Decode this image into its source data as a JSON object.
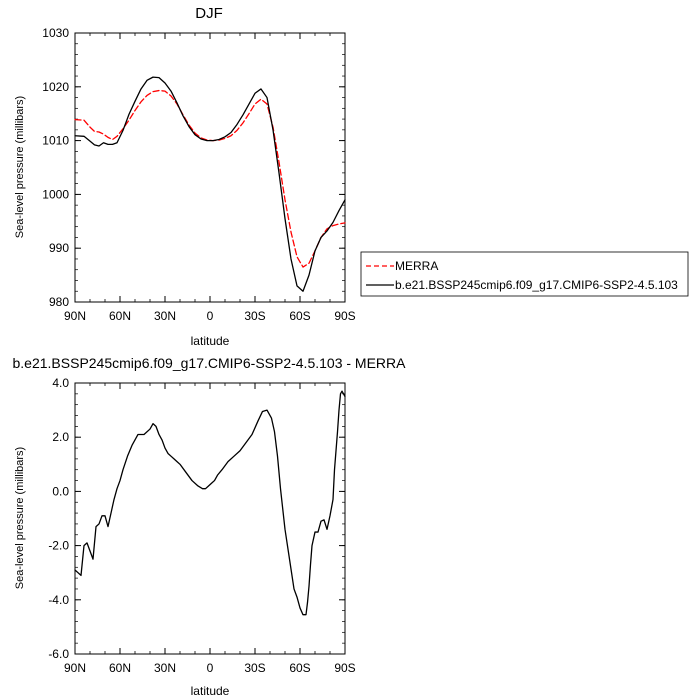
{
  "chart_data": [
    {
      "type": "line",
      "title": "DJF",
      "xlabel": "latitude",
      "ylabel": "Sea-level pressure (millibars)",
      "xlim": [
        90,
        -90
      ],
      "ylim": [
        980,
        1030
      ],
      "xticks": [
        90,
        60,
        30,
        0,
        -30,
        -60,
        -90
      ],
      "xticklabels": [
        "90N",
        "60N",
        "30N",
        "0",
        "30S",
        "60S",
        "90S"
      ],
      "yticks": [
        980,
        990,
        1000,
        1010,
        1020,
        1030
      ],
      "yticklabels": [
        "980",
        "990",
        "1000",
        "1010",
        "1020",
        "1030"
      ],
      "legend_position": "right",
      "series": [
        {
          "name": "MERRA",
          "color": "#ff0000",
          "dash": "dashed",
          "x": [
            90,
            84,
            80,
            77,
            74,
            71,
            68,
            65,
            62,
            58,
            54,
            50,
            46,
            42,
            38,
            34,
            30,
            26,
            22,
            18,
            14,
            10,
            6,
            2,
            -2,
            -6,
            -10,
            -14,
            -18,
            -22,
            -26,
            -30,
            -34,
            -38,
            -42,
            -46,
            -50,
            -54,
            -58,
            -62,
            -66,
            -70,
            -74,
            -78,
            -82,
            -86,
            -90
          ],
          "values": [
            1013.9,
            1013.8,
            1012.5,
            1011.7,
            1011.6,
            1011.2,
            1010.6,
            1010.2,
            1010.8,
            1012.2,
            1013.8,
            1015.6,
            1017.2,
            1018.4,
            1019.1,
            1019.3,
            1019.2,
            1018.3,
            1016.8,
            1014.8,
            1012.9,
            1011.4,
            1010.5,
            1010.1,
            1010.0,
            1010.1,
            1010.4,
            1010.9,
            1011.9,
            1013.3,
            1015.0,
            1016.8,
            1017.7,
            1016.8,
            1012.5,
            1006.0,
            999.0,
            993.0,
            988.4,
            986.5,
            987.2,
            989.5,
            992.0,
            993.6,
            994.2,
            994.5,
            994.7
          ]
        },
        {
          "name": "b.e21.BSSP245cmip6.f09_g17.CMIP6-SSP2-4.5.103",
          "color": "#000000",
          "dash": "solid",
          "x": [
            90,
            84,
            80,
            77,
            74,
            71,
            68,
            65,
            62,
            58,
            54,
            50,
            46,
            42,
            38,
            34,
            30,
            26,
            22,
            18,
            14,
            10,
            6,
            2,
            -2,
            -6,
            -10,
            -14,
            -18,
            -22,
            -26,
            -30,
            -34,
            -38,
            -42,
            -46,
            -50,
            -54,
            -58,
            -62,
            -66,
            -70,
            -74,
            -78,
            -82,
            -86,
            -90
          ],
          "values": [
            1010.9,
            1010.8,
            1009.9,
            1009.2,
            1009.0,
            1009.6,
            1009.3,
            1009.3,
            1009.6,
            1011.9,
            1014.9,
            1017.3,
            1019.6,
            1021.2,
            1021.8,
            1021.7,
            1020.7,
            1019.2,
            1017.0,
            1014.6,
            1012.6,
            1011.1,
            1010.3,
            1010.0,
            1010.0,
            1010.2,
            1010.7,
            1011.5,
            1013.0,
            1014.8,
            1016.8,
            1018.8,
            1019.6,
            1018.0,
            1012.0,
            1004.0,
            995.5,
            988.0,
            983.0,
            982.0,
            985.0,
            989.5,
            992.0,
            993.2,
            994.8,
            997.0,
            999.0
          ]
        }
      ]
    },
    {
      "type": "line",
      "title": "b.e21.BSSP245cmip6.f09_g17.CMIP6-SSP2-4.5.103 - MERRA",
      "xlabel": "latitude",
      "ylabel": "Sea-level pressure (millibars)",
      "xlim": [
        90,
        -90
      ],
      "ylim": [
        -6.0,
        4.0
      ],
      "xticks": [
        90,
        60,
        30,
        0,
        -30,
        -60,
        -90
      ],
      "xticklabels": [
        "90N",
        "60N",
        "30N",
        "0",
        "30S",
        "60S",
        "90S"
      ],
      "yticks": [
        -6,
        -4,
        -2,
        0,
        2,
        4
      ],
      "yticklabels": [
        "-6.0",
        "-4.0",
        "-2.0",
        "0.0",
        "2.0",
        "4.0"
      ],
      "series": [
        {
          "color": "#000000",
          "dash": "solid",
          "x": [
            90,
            88,
            86,
            84,
            82,
            80,
            78,
            76,
            74,
            72,
            70,
            68,
            66,
            64,
            62,
            60,
            58,
            55,
            52,
            48,
            44,
            40,
            38,
            36,
            34,
            32,
            30,
            28,
            26,
            24,
            22,
            20,
            16,
            12,
            8,
            5,
            3,
            1,
            -1,
            -3,
            -5,
            -8,
            -12,
            -16,
            -20,
            -24,
            -28,
            -32,
            -35,
            -38,
            -41,
            -43,
            -45,
            -47,
            -50,
            -53,
            -56,
            -58,
            -60,
            -62,
            -64,
            -65,
            -66,
            -67,
            -68,
            -70,
            -72,
            -74,
            -76,
            -78,
            -80,
            -82,
            -83,
            -85,
            -86,
            -87,
            -88,
            -89,
            -90
          ],
          "values": [
            -2.9,
            -3.0,
            -3.1,
            -2.0,
            -1.9,
            -2.2,
            -2.5,
            -1.3,
            -1.2,
            -0.9,
            -0.9,
            -1.3,
            -0.8,
            -0.3,
            0.1,
            0.4,
            0.8,
            1.3,
            1.7,
            2.1,
            2.1,
            2.3,
            2.5,
            2.4,
            2.1,
            1.9,
            1.6,
            1.4,
            1.3,
            1.2,
            1.1,
            1.0,
            0.7,
            0.4,
            0.2,
            0.1,
            0.1,
            0.2,
            0.3,
            0.4,
            0.6,
            0.8,
            1.1,
            1.3,
            1.5,
            1.8,
            2.1,
            2.6,
            2.95,
            3.0,
            2.7,
            2.2,
            1.3,
            0.1,
            -1.4,
            -2.5,
            -3.6,
            -3.9,
            -4.3,
            -4.55,
            -4.55,
            -4.1,
            -3.5,
            -2.7,
            -2.0,
            -1.5,
            -1.5,
            -1.1,
            -1.05,
            -1.4,
            -0.9,
            -0.3,
            0.8,
            2.2,
            3.0,
            3.6,
            3.7,
            3.6,
            3.5
          ]
        }
      ]
    }
  ]
}
